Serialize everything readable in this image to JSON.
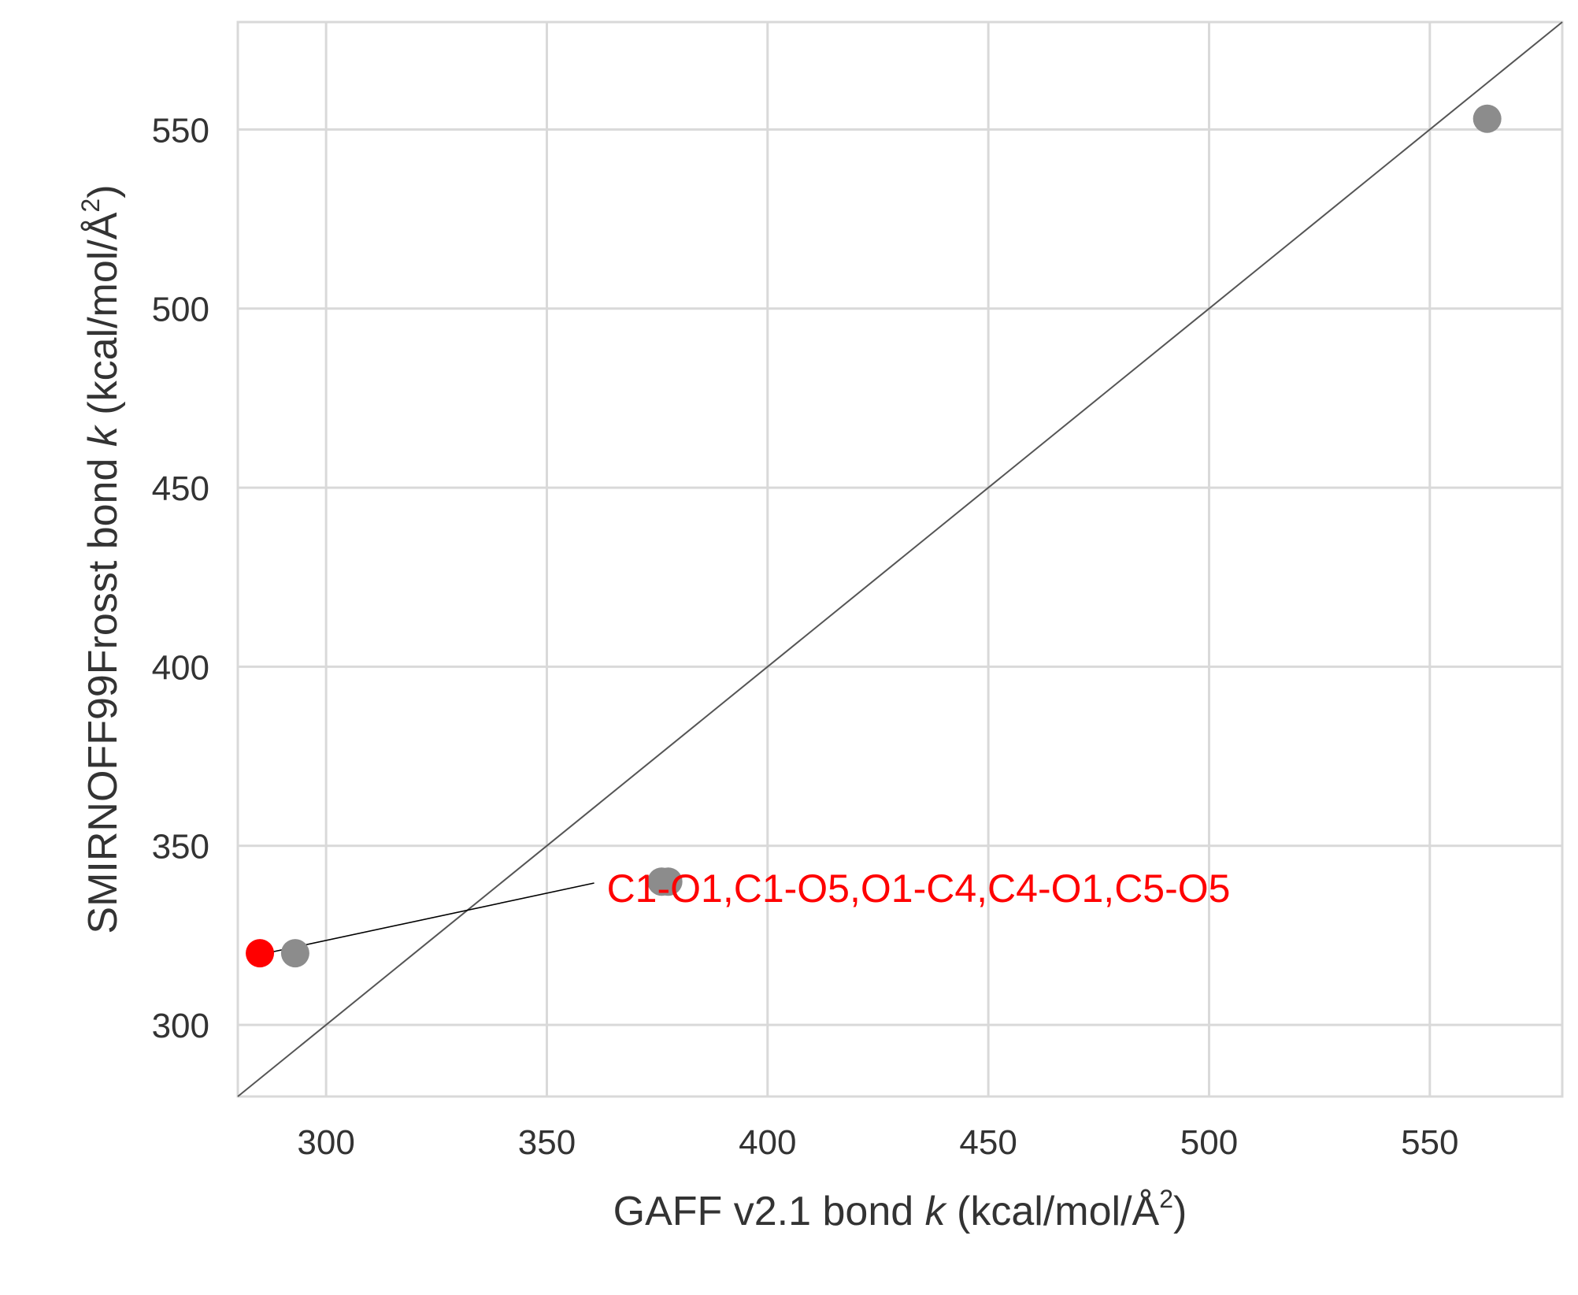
{
  "chart_data": {
    "type": "scatter",
    "xlabel": {
      "prefix": "GAFF v2.1 bond ",
      "var": "k",
      "unit": " (kcal/mol/Å",
      "sup": "2",
      "close": ")"
    },
    "ylabel": {
      "prefix": "SMIRNOFF99Frosst bond ",
      "var": "k",
      "unit": " (kcal/mol/Å",
      "sup": "2",
      "close": ")"
    },
    "xlim": [
      280,
      580
    ],
    "ylim": [
      280,
      580
    ],
    "xticks": [
      300,
      350,
      400,
      450,
      500,
      550
    ],
    "yticks": [
      300,
      350,
      400,
      450,
      500,
      550
    ],
    "grid": true,
    "identity_line": true,
    "series": [
      {
        "color": "#8c8c8c",
        "points": [
          {
            "x": 293,
            "y": 320
          },
          {
            "x": 376,
            "y": 340
          },
          {
            "x": 377.5,
            "y": 340
          },
          {
            "x": 563,
            "y": 553
          }
        ]
      },
      {
        "color": "#ff0000",
        "points": [
          {
            "x": 285,
            "y": 320
          }
        ]
      }
    ],
    "annotations": [
      {
        "text": "C1-O1,C1-O5,O1-C4,C4-O1,C5-O5",
        "point": {
          "x": 285,
          "y": 320
        },
        "text_at": {
          "x": 365,
          "y": 333
        },
        "color": "#ff0000"
      }
    ]
  }
}
